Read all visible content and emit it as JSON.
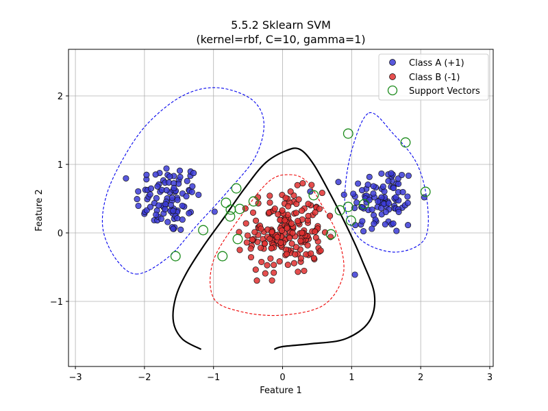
{
  "chart_data": {
    "type": "scatter",
    "title": "5.5.2 Sklearn SVM",
    "subtitle": "(kernel=rbf, C=10, gamma=1)",
    "xlabel": "Feature 1",
    "ylabel": "Feature 2",
    "xlim": [
      -3.1,
      3.05
    ],
    "ylim": [
      -1.95,
      2.68
    ],
    "xticks": [
      -3,
      -2,
      -1,
      0,
      1,
      2,
      3
    ],
    "yticks": [
      -1,
      0,
      1,
      2
    ],
    "xtick_labels": [
      "−3",
      "−2",
      "−1",
      "0",
      "1",
      "2",
      "3"
    ],
    "ytick_labels": [
      "−1",
      "0",
      "1",
      "2"
    ],
    "grid": true,
    "legend_position": "top-right",
    "legend": [
      "Class A (+1)",
      "Class B (-1)",
      "Support Vectors"
    ],
    "colors": {
      "class_a": "#3b3bd6",
      "class_b": "#e03030",
      "support": "#1a8a1a",
      "decision": "#000000",
      "margin_a": "#0000ee",
      "margin_b": "#ee0000",
      "grid": "#b0b0b0"
    },
    "class_a_clusters": [
      {
        "name": "left",
        "center": [
          -1.65,
          0.5
        ],
        "count": 95,
        "spread": [
          0.24,
          0.26
        ]
      },
      {
        "name": "right",
        "center": [
          1.45,
          0.48
        ],
        "count": 95,
        "spread": [
          0.26,
          0.26
        ]
      }
    ],
    "class_b_cluster": {
      "center": [
        0.05,
        0.0
      ],
      "count": 190,
      "spread": [
        0.27,
        0.3
      ]
    },
    "support_vectors": [
      [
        -1.55,
        -0.34
      ],
      [
        -1.15,
        0.04
      ],
      [
        -0.82,
        0.44
      ],
      [
        -0.67,
        0.65
      ],
      [
        -0.62,
        0.35
      ],
      [
        -0.75,
        0.34
      ],
      [
        -0.76,
        0.24
      ],
      [
        -0.65,
        -0.09
      ],
      [
        -0.87,
        -0.34
      ],
      [
        -0.42,
        0.46
      ],
      [
        0.45,
        0.55
      ],
      [
        0.7,
        -0.02
      ],
      [
        0.95,
        1.45
      ],
      [
        1.78,
        1.32
      ],
      [
        2.07,
        0.6
      ],
      [
        0.83,
        0.33
      ],
      [
        0.95,
        0.38
      ],
      [
        0.99,
        0.18
      ],
      [
        1.18,
        0.42
      ]
    ],
    "decision_boundary": [
      [
        -1.18,
        -1.7
      ],
      [
        -1.45,
        -1.55
      ],
      [
        -1.58,
        -1.3
      ],
      [
        -1.55,
        -0.95
      ],
      [
        -1.4,
        -0.6
      ],
      [
        -1.15,
        -0.2
      ],
      [
        -0.85,
        0.22
      ],
      [
        -0.55,
        0.65
      ],
      [
        -0.25,
        1.02
      ],
      [
        0.05,
        1.2
      ],
      [
        0.25,
        1.22
      ],
      [
        0.45,
        1.0
      ],
      [
        0.7,
        0.55
      ],
      [
        0.95,
        0.05
      ],
      [
        1.15,
        -0.4
      ],
      [
        1.33,
        -0.9
      ],
      [
        1.25,
        -1.3
      ],
      [
        0.9,
        -1.55
      ],
      [
        0.4,
        -1.62
      ],
      [
        0.0,
        -1.66
      ],
      [
        -0.12,
        -1.7
      ]
    ],
    "margin_class_a_left": [
      [
        -2.1,
        -0.6
      ],
      [
        -2.4,
        -0.4
      ],
      [
        -2.6,
        0.05
      ],
      [
        -2.55,
        0.55
      ],
      [
        -2.3,
        1.1
      ],
      [
        -1.95,
        1.6
      ],
      [
        -1.45,
        2.0
      ],
      [
        -0.95,
        2.12
      ],
      [
        -0.45,
        1.95
      ],
      [
        -0.27,
        1.6
      ],
      [
        -0.4,
        1.1
      ],
      [
        -0.8,
        0.6
      ],
      [
        -1.25,
        0.1
      ],
      [
        -1.65,
        -0.35
      ],
      [
        -2.1,
        -0.6
      ]
    ],
    "margin_class_a_right": [
      [
        1.25,
        1.75
      ],
      [
        1.6,
        1.45
      ],
      [
        1.95,
        1.0
      ],
      [
        2.1,
        0.4
      ],
      [
        2.05,
        -0.1
      ],
      [
        1.65,
        -0.28
      ],
      [
        1.2,
        -0.15
      ],
      [
        0.97,
        0.15
      ],
      [
        0.9,
        0.55
      ],
      [
        1.0,
        1.2
      ],
      [
        1.25,
        1.75
      ]
    ],
    "margin_class_b": [
      [
        0.1,
        0.85
      ],
      [
        0.35,
        0.75
      ],
      [
        0.6,
        0.35
      ],
      [
        0.8,
        -0.05
      ],
      [
        0.88,
        -0.6
      ],
      [
        0.6,
        -1.05
      ],
      [
        0.0,
        -1.2
      ],
      [
        -0.6,
        -1.15
      ],
      [
        -1.0,
        -0.95
      ],
      [
        -1.0,
        -0.4
      ],
      [
        -0.6,
        0.25
      ],
      [
        -0.2,
        0.75
      ],
      [
        0.1,
        0.85
      ]
    ]
  }
}
